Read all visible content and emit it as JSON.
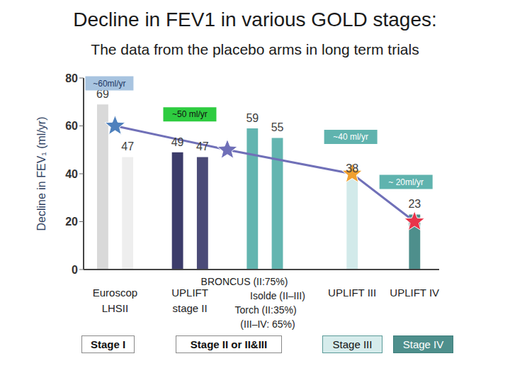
{
  "chart_data": {
    "type": "bar",
    "title": "Decline in FEV1 in various GOLD stages:",
    "subtitle": "The data from the placebo arms in long term trials",
    "y_label": "Decline in FEV₁ (ml/yr)",
    "categories": [
      null,
      "Euroscop LHSII",
      null,
      null,
      null,
      null,
      null,
      "UPLIFT stage II",
      null,
      null,
      null,
      null,
      null,
      null,
      null,
      null,
      null,
      null,
      null,
      null,
      "UPLIFT III",
      null,
      null,
      null,
      null,
      "UPLIFT IV"
    ],
    "series": [
      {
        "type": "bar",
        "data_labels": true,
        "values": [
          69,
          null,
          47,
          null,
          null,
          null,
          49,
          null,
          47,
          null,
          null,
          null,
          59,
          null,
          55,
          null,
          null,
          null,
          null,
          null,
          38,
          null,
          null,
          null,
          null,
          23
        ],
        "colors": [
          "#d9d9d9",
          null,
          "#eeeeee",
          null,
          null,
          null,
          "#3c3c6a",
          null,
          "#4b4b78",
          null,
          null,
          null,
          "#63b5b0",
          null,
          "#63b5b0",
          null,
          null,
          null,
          null,
          null,
          "#d2eaea",
          null,
          null,
          null,
          null,
          "#4e8f8c"
        ]
      },
      {
        "type": "line",
        "color": "#7070b8",
        "marker": "star",
        "values": [
          null,
          60,
          null,
          null,
          null,
          null,
          null,
          null,
          null,
          null,
          50,
          null,
          null,
          null,
          null,
          null,
          null,
          null,
          null,
          null,
          40,
          null,
          null,
          null,
          null,
          20
        ],
        "value_labels": [
          null,
          "~60ml/yr",
          null,
          null,
          null,
          null,
          null,
          null,
          null,
          null,
          "~50 ml/yr",
          null,
          null,
          null,
          null,
          null,
          null,
          null,
          null,
          null,
          "~40 ml/yr",
          null,
          null,
          null,
          null,
          "~ 20ml/yr"
        ],
        "colors": [
          null,
          "#4f81bd",
          null,
          null,
          null,
          null,
          null,
          null,
          null,
          null,
          null,
          "#33cc33",
          null,
          null,
          null,
          null,
          null,
          null,
          null,
          null,
          "#f0a030",
          null,
          null,
          null,
          null,
          "#e8344a"
        ]
      }
    ],
    "ylim": [
      0,
      80
    ],
    "yticks": [
      0,
      20,
      40,
      60,
      80
    ],
    "grid": false,
    "trial_labels": [
      "BRONCUS (II:75%)",
      "Isolde (II–III)",
      "Torch (II:35%)",
      "(III–IV: 65%)"
    ],
    "stages": [
      "Stage I",
      "Stage II or II&III",
      "Stage III",
      "Stage IV"
    ]
  }
}
